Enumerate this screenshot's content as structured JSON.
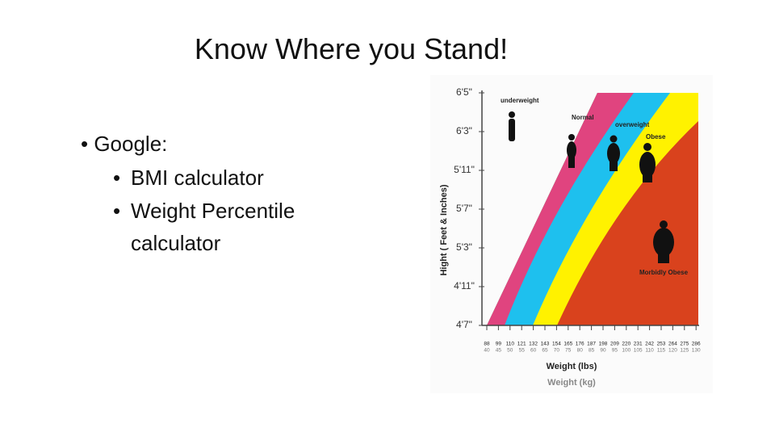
{
  "slide": {
    "title": "Know Where you Stand!",
    "bullets": [
      {
        "text": "Google:",
        "children": [
          "BMI calculator",
          "Weight Percentile calculator"
        ]
      }
    ]
  },
  "figure": {
    "y_axis_title": "Hight ( Feet & Inches)",
    "y_labels": [
      "6'5\"",
      "6'3\"",
      "5'11\"",
      "5'7\"",
      "5'3\"",
      "4'11\"",
      "4'7\""
    ],
    "x_lbs": [
      88,
      99,
      110,
      121,
      132,
      143,
      154,
      165,
      176,
      187,
      198,
      209,
      220,
      231,
      242,
      253,
      264,
      275,
      286
    ],
    "x_kg": [
      40,
      45,
      50,
      55,
      60,
      65,
      70,
      75,
      80,
      85,
      90,
      95,
      100,
      105,
      110,
      115,
      120,
      125,
      130
    ],
    "x_axis_title_lbs": "Weight (lbs)",
    "x_axis_title_kg": "Weight (kg)",
    "zones": [
      "underweight",
      "Normal",
      "overweight",
      "Obese",
      "Morbidly Obese"
    ]
  }
}
